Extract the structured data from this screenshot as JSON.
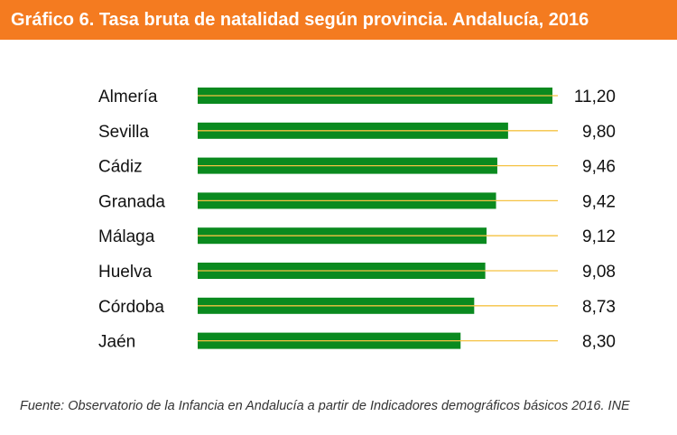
{
  "header": {
    "title": "Gráfico 6. Tasa bruta de natalidad según provincia. Andalucía, 2016"
  },
  "footer": {
    "source": "Fuente: Observatorio de la Infancia en Andalucía a partir de Indicadores demográficos básicos 2016. INE"
  },
  "colors": {
    "header_bg": "#f47b20",
    "bar": "#0a8a1f",
    "bar_line": "#f5c242"
  },
  "chart_data": {
    "type": "bar",
    "orientation": "horizontal",
    "title": "Gráfico 6. Tasa bruta de natalidad según provincia. Andalucía, 2016",
    "categories": [
      "Almería",
      "Sevilla",
      "Cádiz",
      "Granada",
      "Málaga",
      "Huelva",
      "Córdoba",
      "Jaén"
    ],
    "values": [
      11.2,
      9.8,
      9.46,
      9.42,
      9.12,
      9.08,
      8.73,
      8.3
    ],
    "value_labels": [
      "11,20",
      "9,80",
      "9,46",
      "9,42",
      "9,12",
      "9,08",
      "8,73",
      "8,30"
    ],
    "xlim": [
      0,
      11.2
    ],
    "grid": false,
    "legend": "none"
  }
}
